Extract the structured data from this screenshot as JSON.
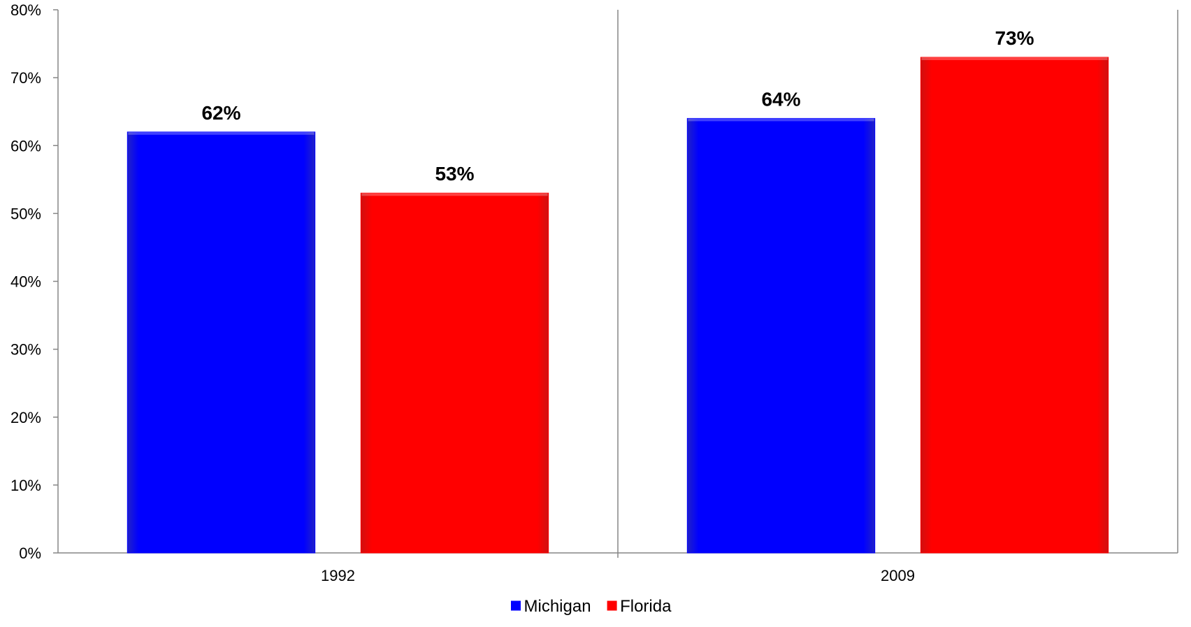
{
  "chart_data": {
    "type": "bar",
    "categories": [
      "1992",
      "2009"
    ],
    "series": [
      {
        "name": "Michigan",
        "values": [
          62,
          64
        ],
        "labels": [
          "62%",
          "64%"
        ],
        "color": "#0000FF"
      },
      {
        "name": "Florida",
        "values": [
          53,
          73
        ],
        "labels": [
          "53%",
          "73%"
        ],
        "color": "#FF0000"
      }
    ],
    "ylim": [
      0,
      80
    ],
    "yticks": [
      0,
      10,
      20,
      30,
      40,
      50,
      60,
      70,
      80
    ],
    "ytick_labels": [
      "0%",
      "10%",
      "20%",
      "30%",
      "40%",
      "50%",
      "60%",
      "70%",
      "80%"
    ],
    "grid": false,
    "category_separators": true,
    "legend": {
      "position": "bottom",
      "entries": [
        "Michigan",
        "Florida"
      ]
    },
    "colors": {
      "axis": "#868686",
      "text": "#000000"
    }
  }
}
